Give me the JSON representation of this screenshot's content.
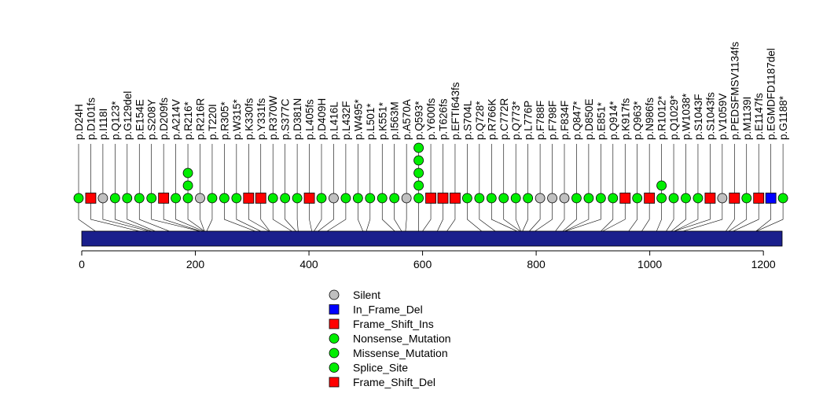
{
  "chart_data": {
    "type": "lollipop",
    "xlim": [
      0,
      1233
    ],
    "x_ticks": [
      0,
      200,
      400,
      600,
      800,
      1000,
      1200
    ],
    "domain_bar_color": "#1a1f8c",
    "mutations": [
      {
        "label": "p.D24H",
        "pos": 24,
        "type": "Missense_Mutation",
        "count": 1
      },
      {
        "label": "p.D101fs",
        "pos": 101,
        "type": "Frame_Shift_Del",
        "count": 1
      },
      {
        "label": "p.I118I",
        "pos": 118,
        "type": "Silent",
        "count": 1
      },
      {
        "label": "p.Q123*",
        "pos": 123,
        "type": "Nonsense_Mutation",
        "count": 1
      },
      {
        "label": "p.G129del",
        "pos": 129,
        "type": "Missense_Mutation",
        "count": 1
      },
      {
        "label": "p.E154E",
        "pos": 154,
        "type": "Missense_Mutation",
        "count": 1
      },
      {
        "label": "p.S208Y",
        "pos": 208,
        "type": "Missense_Mutation",
        "count": 1
      },
      {
        "label": "p.D209fs",
        "pos": 209,
        "type": "Frame_Shift_Del",
        "count": 1
      },
      {
        "label": "p.A214V",
        "pos": 214,
        "type": "Missense_Mutation",
        "count": 1
      },
      {
        "label": "p.R216*",
        "pos": 216,
        "type": "Nonsense_Mutation",
        "count": 3
      },
      {
        "label": "p.R216R",
        "pos": 216,
        "type": "Silent",
        "count": 1
      },
      {
        "label": "p.T220I",
        "pos": 220,
        "type": "Missense_Mutation",
        "count": 1
      },
      {
        "label": "p.R305*",
        "pos": 305,
        "type": "Nonsense_Mutation",
        "count": 1
      },
      {
        "label": "p.W315*",
        "pos": 315,
        "type": "Nonsense_Mutation",
        "count": 1
      },
      {
        "label": "p.K330fs",
        "pos": 330,
        "type": "Frame_Shift_Del",
        "count": 1
      },
      {
        "label": "p.Y331fs",
        "pos": 331,
        "type": "Frame_Shift_Del",
        "count": 1
      },
      {
        "label": "p.R370W",
        "pos": 370,
        "type": "Missense_Mutation",
        "count": 1
      },
      {
        "label": "p.S377C",
        "pos": 377,
        "type": "Missense_Mutation",
        "count": 1
      },
      {
        "label": "p.D381N",
        "pos": 381,
        "type": "Missense_Mutation",
        "count": 1
      },
      {
        "label": "p.L405fs",
        "pos": 405,
        "type": "Frame_Shift_Del",
        "count": 1
      },
      {
        "label": "p.D409H",
        "pos": 409,
        "type": "Missense_Mutation",
        "count": 1
      },
      {
        "label": "p.L416L",
        "pos": 416,
        "type": "Silent",
        "count": 1
      },
      {
        "label": "p.L432F",
        "pos": 432,
        "type": "Missense_Mutation",
        "count": 1
      },
      {
        "label": "p.W495*",
        "pos": 495,
        "type": "Nonsense_Mutation",
        "count": 1
      },
      {
        "label": "p.L501*",
        "pos": 501,
        "type": "Nonsense_Mutation",
        "count": 1
      },
      {
        "label": "p.K551*",
        "pos": 551,
        "type": "Nonsense_Mutation",
        "count": 1
      },
      {
        "label": "p.I563M",
        "pos": 563,
        "type": "Missense_Mutation",
        "count": 1
      },
      {
        "label": "p.A570A",
        "pos": 570,
        "type": "Silent",
        "count": 1
      },
      {
        "label": "p.Q593*",
        "pos": 593,
        "type": "Nonsense_Mutation",
        "count": 5
      },
      {
        "label": "p.Y600fs",
        "pos": 600,
        "type": "Frame_Shift_Del",
        "count": 1
      },
      {
        "label": "p.T626fs",
        "pos": 626,
        "type": "Frame_Shift_Del",
        "count": 1
      },
      {
        "label": "p.EFTI643fs",
        "pos": 643,
        "type": "Frame_Shift_Del",
        "count": 1
      },
      {
        "label": "p.S704L",
        "pos": 704,
        "type": "Missense_Mutation",
        "count": 1
      },
      {
        "label": "p.Q728*",
        "pos": 728,
        "type": "Nonsense_Mutation",
        "count": 1
      },
      {
        "label": "p.R766K",
        "pos": 766,
        "type": "Missense_Mutation",
        "count": 1
      },
      {
        "label": "p.C772R",
        "pos": 772,
        "type": "Missense_Mutation",
        "count": 1
      },
      {
        "label": "p.Q773*",
        "pos": 773,
        "type": "Nonsense_Mutation",
        "count": 1
      },
      {
        "label": "p.L776P",
        "pos": 776,
        "type": "Missense_Mutation",
        "count": 1
      },
      {
        "label": "p.F788F",
        "pos": 788,
        "type": "Silent",
        "count": 1
      },
      {
        "label": "p.F798F",
        "pos": 798,
        "type": "Silent",
        "count": 1
      },
      {
        "label": "p.F834F",
        "pos": 834,
        "type": "Silent",
        "count": 1
      },
      {
        "label": "p.Q847*",
        "pos": 847,
        "type": "Nonsense_Mutation",
        "count": 1
      },
      {
        "label": "p.D850E",
        "pos": 850,
        "type": "Missense_Mutation",
        "count": 1
      },
      {
        "label": "p.E851*",
        "pos": 851,
        "type": "Nonsense_Mutation",
        "count": 1
      },
      {
        "label": "p.Q914*",
        "pos": 914,
        "type": "Nonsense_Mutation",
        "count": 1
      },
      {
        "label": "p.K917fs",
        "pos": 917,
        "type": "Frame_Shift_Del",
        "count": 1
      },
      {
        "label": "p.Q963*",
        "pos": 963,
        "type": "Nonsense_Mutation",
        "count": 1
      },
      {
        "label": "p.N986fs",
        "pos": 986,
        "type": "Frame_Shift_Del",
        "count": 1
      },
      {
        "label": "p.R1012*",
        "pos": 1012,
        "type": "Nonsense_Mutation",
        "count": 2
      },
      {
        "label": "p.Q1029*",
        "pos": 1029,
        "type": "Nonsense_Mutation",
        "count": 1
      },
      {
        "label": "p.W1038*",
        "pos": 1038,
        "type": "Nonsense_Mutation",
        "count": 1
      },
      {
        "label": "p.S1043F",
        "pos": 1043,
        "type": "Missense_Mutation",
        "count": 1
      },
      {
        "label": "p.S1043fs",
        "pos": 1043,
        "type": "Frame_Shift_Del",
        "count": 1
      },
      {
        "label": "p.V1059V",
        "pos": 1059,
        "type": "Silent",
        "count": 1
      },
      {
        "label": "p.PEDSFMSV1134fs",
        "pos": 1134,
        "type": "Frame_Shift_Ins",
        "count": 1
      },
      {
        "label": "p.M1139I",
        "pos": 1139,
        "type": "Missense_Mutation",
        "count": 1
      },
      {
        "label": "p.E1147fs",
        "pos": 1147,
        "type": "Frame_Shift_Del",
        "count": 1
      },
      {
        "label": "p.EGMDFD1187del",
        "pos": 1187,
        "type": "In_Frame_Del",
        "count": 1
      },
      {
        "label": "p.G1188*",
        "pos": 1188,
        "type": "Nonsense_Mutation",
        "count": 1
      }
    ],
    "legend": [
      {
        "label": "Silent",
        "shape": "circle",
        "color": "#c0c0c0"
      },
      {
        "label": "In_Frame_Del",
        "shape": "square",
        "color": "#0000ff"
      },
      {
        "label": "Frame_Shift_Ins",
        "shape": "square",
        "color": "#ff0000"
      },
      {
        "label": "Nonsense_Mutation",
        "shape": "circle",
        "color": "#00ee00"
      },
      {
        "label": "Missense_Mutation",
        "shape": "circle",
        "color": "#00ee00"
      },
      {
        "label": "Splice_Site",
        "shape": "circle",
        "color": "#00ee00"
      },
      {
        "label": "Frame_Shift_Del",
        "shape": "square",
        "color": "#ff0000"
      }
    ],
    "legend_placement": "bottom-center"
  }
}
